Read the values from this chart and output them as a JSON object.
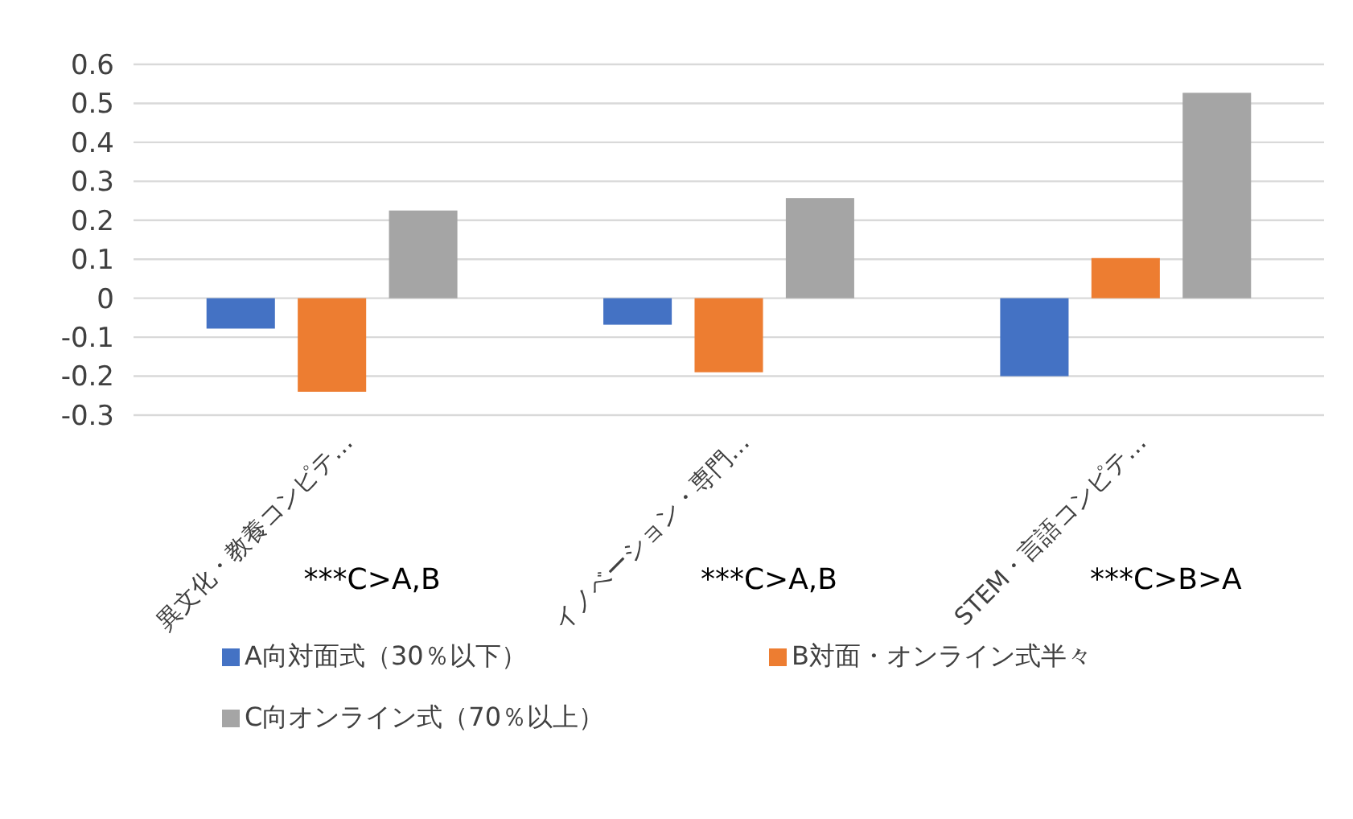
{
  "chart_data": {
    "type": "bar",
    "categories": [
      "異文化・教養コンピテ…",
      "イノベーション・専門…",
      "STEM・言語コンピテ…"
    ],
    "series": [
      {
        "name": "A向対面式（30％以下）",
        "color": "#4472c4",
        "values": [
          -0.078,
          -0.068,
          -0.2
        ]
      },
      {
        "name": "B対面・オンライン式半々",
        "color": "#ed7d31",
        "values": [
          -0.24,
          -0.19,
          0.103
        ]
      },
      {
        "name": "C向オンライン式（70％以上）",
        "color": "#a5a5a5",
        "values": [
          0.225,
          0.257,
          0.527
        ]
      }
    ],
    "ylim": [
      -0.3,
      0.6
    ],
    "yticks": [
      -0.3,
      -0.2,
      -0.1,
      0,
      0.1,
      0.2,
      0.3,
      0.4,
      0.5,
      0.6
    ],
    "grid": "y",
    "legend": "bottom",
    "annotations": [
      "***C>A,B",
      "***C>A,B",
      "***C>B>A"
    ]
  }
}
